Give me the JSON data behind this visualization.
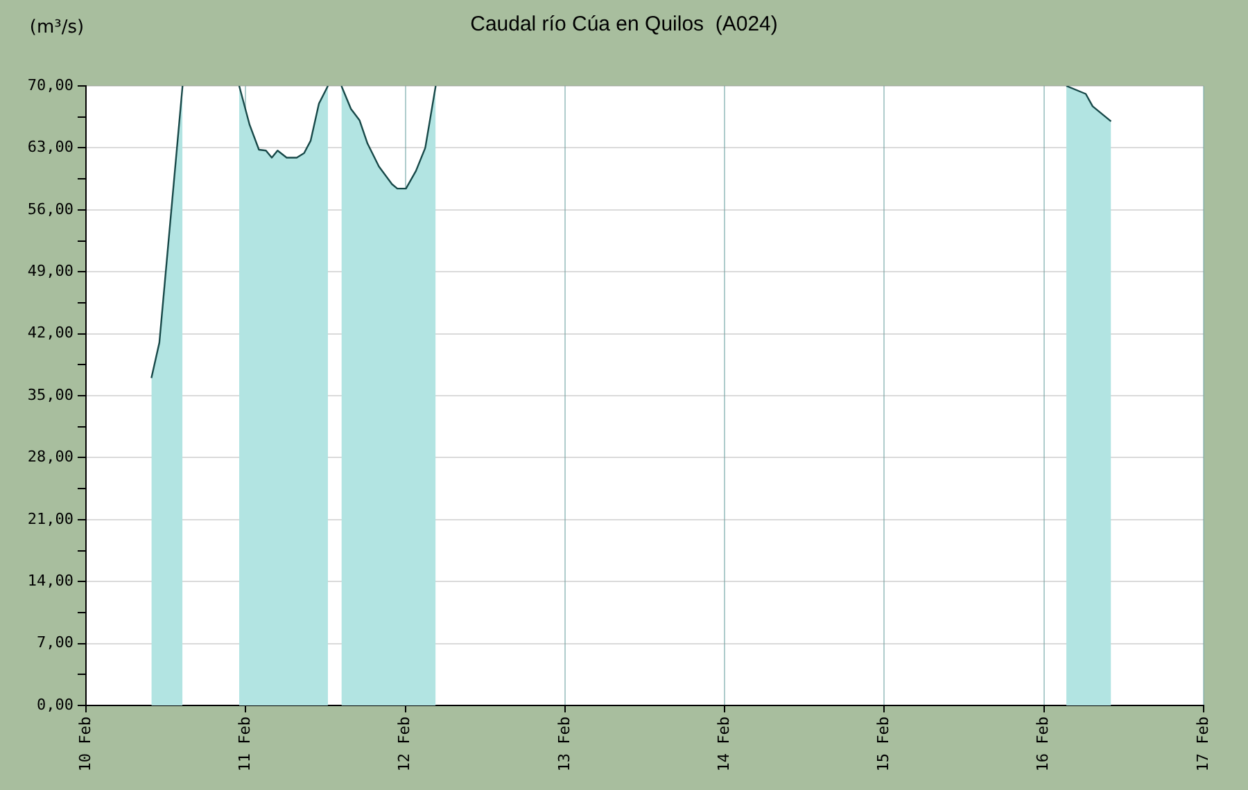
{
  "chart_data": {
    "type": "area",
    "title": "Caudal río Cúa en Quilos  (A024)",
    "ylabel": "(m³/s)",
    "x": [
      "--02-10T09:50",
      "--02-10T11:02",
      "--02-10T14:31",
      "--02-10T18:00",
      "--02-10T23:02",
      "--02-11T00:36",
      "--02-11T02:00",
      "--02-11T03:03",
      "--02-11T03:56",
      "--02-11T04:48",
      "--02-11T06:10",
      "--02-11T07:41",
      "--02-11T08:47",
      "--02-11T09:46",
      "--02-11T11:01",
      "--02-11T12:22",
      "--02-11T13:26",
      "--02-11T14:24",
      "--02-11T15:50",
      "--02-11T17:08",
      "--02-11T18:19",
      "--02-11T20:02",
      "--02-11T22:00",
      "--02-11T22:48",
      "--02-12T00:06",
      "--02-12T01:36",
      "--02-12T03:00",
      "--02-12T04:34",
      "--02-14T00:00",
      "--02-16T03:22",
      "--02-16T06:17",
      "--02-16T07:19",
      "--02-16T10:05"
    ],
    "series": [
      {
        "color": "#b2e4e2",
        "values": [
          37.0,
          41.0,
          70.0,
          null,
          70.0,
          65.6,
          62.8,
          62.7,
          61.9,
          62.7,
          61.9,
          61.9,
          62.4,
          63.8,
          68.0,
          70.0,
          null,
          70.0,
          67.4,
          66.1,
          63.5,
          60.9,
          58.9,
          58.4,
          58.4,
          60.4,
          63.0,
          70.0,
          null,
          70.0,
          69.1,
          67.7,
          66.0
        ]
      }
    ],
    "xlim": [
      "--02-10",
      "--02-17"
    ],
    "xticks": [
      {
        "value": "--02-10",
        "label": "10 Feb"
      },
      {
        "value": "--02-11",
        "label": "11 Feb"
      },
      {
        "value": "--02-12",
        "label": "12 Feb"
      },
      {
        "value": "--02-13",
        "label": "13 Feb"
      },
      {
        "value": "--02-14",
        "label": "14 Feb"
      },
      {
        "value": "--02-15",
        "label": "15 Feb"
      },
      {
        "value": "--02-16",
        "label": "16 Feb"
      },
      {
        "value": "--02-17",
        "label": "17 Feb"
      }
    ],
    "ylim": [
      0,
      70
    ],
    "yticks": [
      {
        "value": 0,
        "label": "0,00"
      },
      {
        "value": 3.5,
        "label": null
      },
      {
        "value": 7,
        "label": "7,00"
      },
      {
        "value": 10.5,
        "label": null
      },
      {
        "value": 14,
        "label": "14,00"
      },
      {
        "value": 17.5,
        "label": null
      },
      {
        "value": 21,
        "label": "21,00"
      },
      {
        "value": 24.5,
        "label": null
      },
      {
        "value": 28,
        "label": "28,00"
      },
      {
        "value": 31.5,
        "label": null
      },
      {
        "value": 35,
        "label": "35,00"
      },
      {
        "value": 38.5,
        "label": null
      },
      {
        "value": 42,
        "label": "42,00"
      },
      {
        "value": 45.5,
        "label": null
      },
      {
        "value": 49,
        "label": "49,00"
      },
      {
        "value": 52.5,
        "label": null
      },
      {
        "value": 56,
        "label": "56,00"
      },
      {
        "value": 59.5,
        "label": null
      },
      {
        "value": 63,
        "label": "63,00"
      },
      {
        "value": 66.5,
        "label": null
      },
      {
        "value": 70,
        "label": "70,00"
      }
    ],
    "grid": true,
    "legend": false,
    "marker": "none"
  }
}
